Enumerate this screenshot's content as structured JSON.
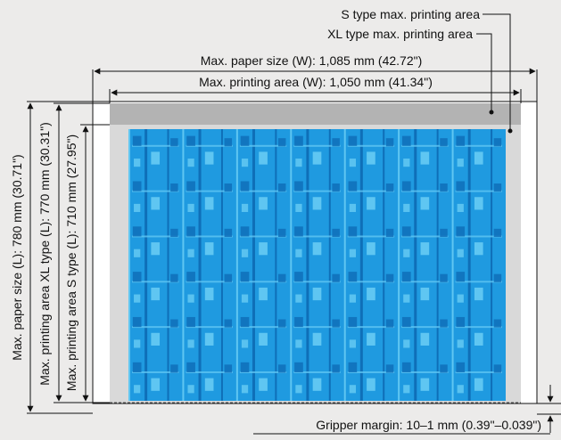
{
  "callouts": {
    "s_type": "S type max. printing area",
    "xl_type": "XL type max. printing area"
  },
  "dimensions": {
    "paper_width": "Max. paper size (W): 1,085 mm (42.72\")",
    "print_width": "Max. printing area (W): 1,050 mm (41.34\")",
    "paper_length": "Max. paper size (L): 780 mm (30.71\")",
    "xl_length": "Max. printing area XL type (L): 770 mm (30.31\")",
    "s_length": "Max. printing area S type (L): 710 mm (27.95\")",
    "gripper_margin": "Gripper margin: 10–1 mm (0.39\"–0.039\")"
  },
  "colors": {
    "background": "#ecebea",
    "paper": "#ffffff",
    "xl_band": "#b3b3b3",
    "s_area": "#d9d9d9",
    "print_blue": "#1f9ae0",
    "print_dark": "#0f6fb8",
    "print_light": "#5fc6f2"
  },
  "print_pattern": {
    "columns": 7,
    "rows": 6
  }
}
